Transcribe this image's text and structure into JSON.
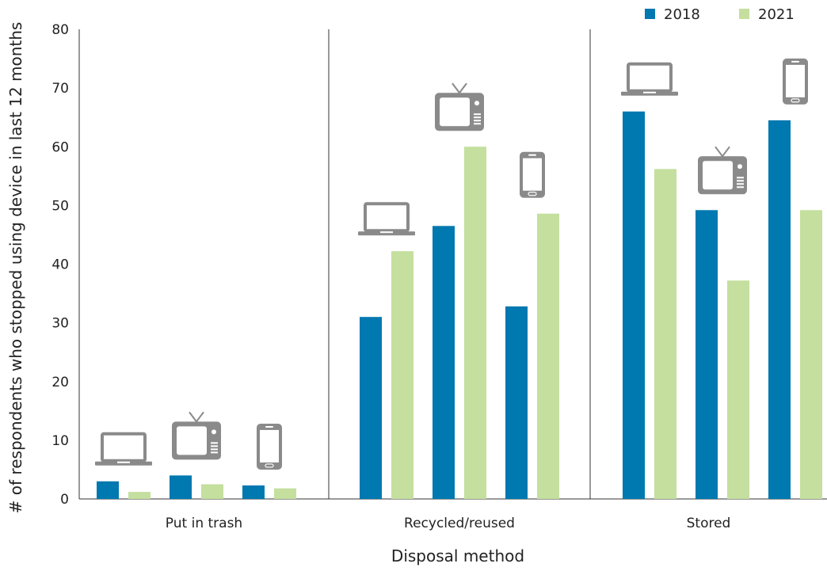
{
  "chart_data": {
    "type": "bar",
    "xlabel": "Disposal method",
    "ylabel": "# of respondents who stopped using device in last 12 months",
    "ylim": [
      0,
      80
    ],
    "yticks": [
      0,
      10,
      20,
      30,
      40,
      50,
      60,
      70,
      80
    ],
    "grid": false,
    "legend_position": "top-right",
    "groups": [
      "Put in trash",
      "Recycled/reused",
      "Stored"
    ],
    "devices": [
      "laptop",
      "tv",
      "phone"
    ],
    "device_icons": [
      "laptop-icon",
      "tv-icon",
      "phone-icon"
    ],
    "series": [
      {
        "name": "2018",
        "color": "#0078b0",
        "values": [
          [
            3,
            4,
            2.3
          ],
          [
            31,
            46.5,
            32.8
          ],
          [
            66,
            49.2,
            64.5
          ]
        ]
      },
      {
        "name": "2021",
        "color": "#c4df9e",
        "values": [
          [
            1.2,
            2.5,
            1.8
          ],
          [
            42.2,
            60,
            48.6
          ],
          [
            56.2,
            37.2,
            49.2
          ]
        ]
      }
    ],
    "icon_color": "#8a8a8a"
  }
}
